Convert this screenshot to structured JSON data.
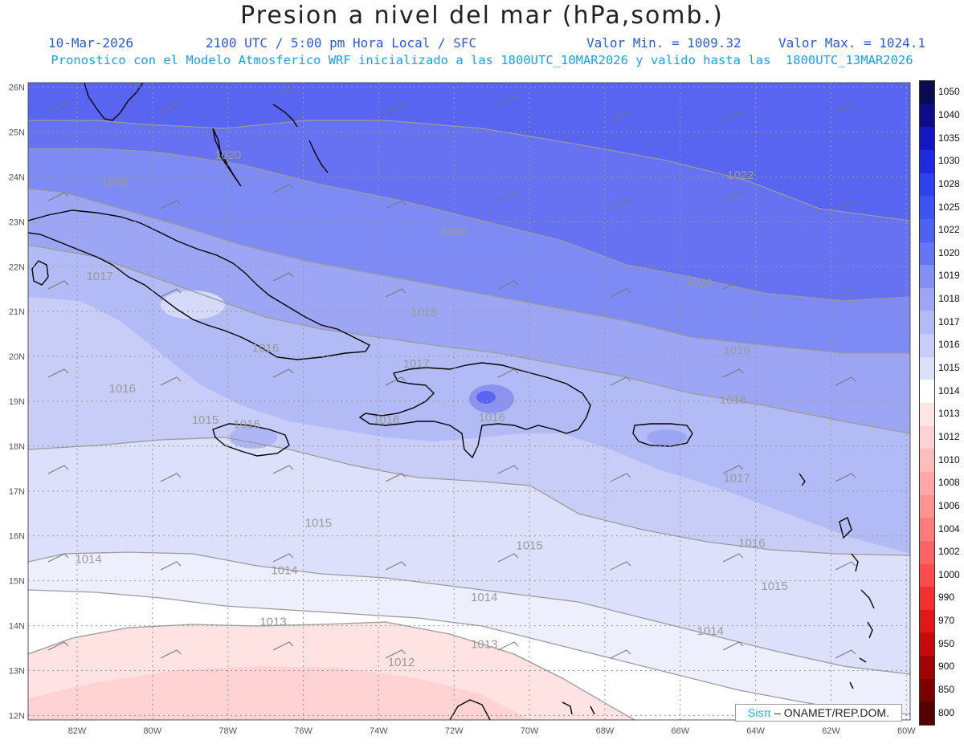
{
  "header": {
    "title": "Presion a nivel del mar (hPa,somb.)",
    "date": "10-Mar-2026",
    "time": "2100 UTC / 5:00 pm Hora Local / SFC",
    "min": "Valor Min. = 1009.32",
    "max": "Valor Max. = 1024.1",
    "forecast": "Pronostico con el Modelo Atmosferico WRF inicializado a las 1800UTC_10MAR2026 y valido hasta las  1800UTC_13MAR2026"
  },
  "axes": {
    "lat_labels": [
      "26N",
      "25N",
      "24N",
      "23N",
      "22N",
      "21N",
      "20N",
      "19N",
      "18N",
      "17N",
      "16N",
      "15N",
      "14N",
      "13N",
      "12N"
    ],
    "lon_labels": [
      "82W",
      "80W",
      "78W",
      "76W",
      "74W",
      "72W",
      "70W",
      "68W",
      "66W",
      "64W",
      "62W",
      "60W"
    ]
  },
  "contour_labels": [
    {
      "text": "1020",
      "lon": -78.0,
      "lat": 24.4
    },
    {
      "text": "1022",
      "lon": -64.4,
      "lat": 23.95
    },
    {
      "text": "1020",
      "lon": -72.0,
      "lat": 22.7
    },
    {
      "text": "1018",
      "lon": -81.0,
      "lat": 23.8
    },
    {
      "text": "1017",
      "lon": -81.4,
      "lat": 21.7
    },
    {
      "text": "1020",
      "lon": -65.5,
      "lat": 21.55
    },
    {
      "text": "1018",
      "lon": -72.8,
      "lat": 20.9
    },
    {
      "text": "1016",
      "lon": -77.0,
      "lat": 20.1
    },
    {
      "text": "1019",
      "lon": -64.5,
      "lat": 20.05
    },
    {
      "text": "1017",
      "lon": -73.0,
      "lat": 19.75
    },
    {
      "text": "1016",
      "lon": -80.8,
      "lat": 19.2
    },
    {
      "text": "1018",
      "lon": -64.6,
      "lat": 18.95
    },
    {
      "text": "1015",
      "lon": -78.6,
      "lat": 18.5
    },
    {
      "text": "1016",
      "lon": -77.5,
      "lat": 18.4
    },
    {
      "text": "1016",
      "lon": -73.8,
      "lat": 18.5
    },
    {
      "text": "1016",
      "lon": -71.0,
      "lat": 18.55
    },
    {
      "text": "1017",
      "lon": -64.5,
      "lat": 17.2
    },
    {
      "text": "1015",
      "lon": -75.6,
      "lat": 16.2
    },
    {
      "text": "1016",
      "lon": -64.1,
      "lat": 15.75
    },
    {
      "text": "1015",
      "lon": -70.0,
      "lat": 15.7
    },
    {
      "text": "1014",
      "lon": -81.7,
      "lat": 15.4
    },
    {
      "text": "1014",
      "lon": -76.5,
      "lat": 15.15
    },
    {
      "text": "1015",
      "lon": -63.5,
      "lat": 14.8
    },
    {
      "text": "1014",
      "lon": -71.2,
      "lat": 14.55
    },
    {
      "text": "1014",
      "lon": -65.2,
      "lat": 13.8
    },
    {
      "text": "1013",
      "lon": -76.8,
      "lat": 14.0
    },
    {
      "text": "1013",
      "lon": -71.2,
      "lat": 13.5
    },
    {
      "text": "1012",
      "lon": -73.4,
      "lat": 13.1
    }
  ],
  "colorbar": {
    "levels": [
      "1050",
      "1040",
      "1035",
      "1030",
      "1028",
      "1025",
      "1022",
      "1020",
      "1019",
      "1018",
      "1017",
      "1016",
      "1015",
      "1014",
      "1013",
      "1012",
      "1010",
      "1008",
      "1006",
      "1004",
      "1002",
      "1000",
      "990",
      "970",
      "950",
      "900",
      "850",
      "800"
    ],
    "colors": [
      "#0b0b50",
      "#0d0d8a",
      "#1515c4",
      "#1f2ae0",
      "#2b43ee",
      "#3c55f2",
      "#4d62f4",
      "#6575f4",
      "#8290f4",
      "#9ca6f5",
      "#b3bbf6",
      "#c8cdf8",
      "#dde0fa",
      "#ffffff",
      "#ffe4e4",
      "#ffd1d1",
      "#ffbcbc",
      "#ffa6a6",
      "#ff9292",
      "#ff7c7c",
      "#ff6464",
      "#ff4b4b",
      "#f23030",
      "#e01818",
      "#c40a0a",
      "#a00404",
      "#7a0000",
      "#550000"
    ]
  },
  "credit": {
    "brand": "Sisπ",
    "text": "– ONAMET/REP.DOM."
  }
}
